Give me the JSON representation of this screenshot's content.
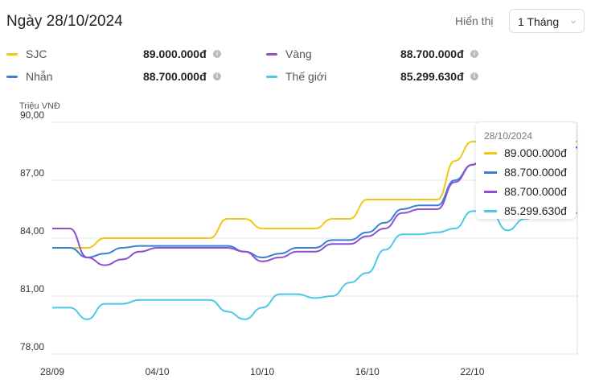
{
  "header": {
    "title": "Ngày 28/10/2024",
    "display_label": "Hiển thị",
    "period": "1 Tháng"
  },
  "legend": [
    {
      "name": "SJC",
      "value": "89.000.000đ",
      "color": "#f2c811"
    },
    {
      "name": "Nhẫn",
      "value": "88.700.000đ",
      "color": "#3a7fd5"
    },
    {
      "name": "Vàng",
      "value": "88.700.000đ",
      "color": "#8e4fd1"
    },
    {
      "name": "Thế giới",
      "value": "85.299.630đ",
      "color": "#4ec8e6"
    }
  ],
  "tooltip": {
    "date": "28/10/2024",
    "values": [
      "89.000.000đ",
      "88.700.000đ",
      "88.700.000đ",
      "85.299.630đ"
    ]
  },
  "chart_data": {
    "type": "line",
    "ylabel": "Triệu VNĐ",
    "ylim": [
      78,
      90
    ],
    "yticks": [
      "90,00",
      "87,00",
      "84,00",
      "81,00",
      "78,00"
    ],
    "xticks": [
      "28/09",
      "04/10",
      "10/10",
      "16/10",
      "22/10"
    ],
    "x": [
      "28/09",
      "29/09",
      "30/09",
      "01/10",
      "02/10",
      "03/10",
      "04/10",
      "05/10",
      "06/10",
      "07/10",
      "08/10",
      "09/10",
      "10/10",
      "11/10",
      "12/10",
      "13/10",
      "14/10",
      "15/10",
      "16/10",
      "17/10",
      "18/10",
      "19/10",
      "20/10",
      "21/10",
      "22/10",
      "23/10",
      "24/10",
      "25/10",
      "26/10",
      "27/10",
      "28/10"
    ],
    "grid": true,
    "series": [
      {
        "name": "SJC",
        "values": [
          83.5,
          83.5,
          83.5,
          84,
          84,
          84,
          84,
          84,
          84,
          84,
          85,
          85,
          84.5,
          84.5,
          84.5,
          84.5,
          85,
          85,
          86,
          86,
          86,
          86,
          86,
          88,
          89,
          89,
          89,
          89,
          89,
          89,
          89
        ]
      },
      {
        "name": "Nhẫn",
        "values": [
          83.5,
          83.5,
          83,
          83.2,
          83.5,
          83.6,
          83.6,
          83.6,
          83.6,
          83.6,
          83.6,
          83.3,
          83,
          83.2,
          83.5,
          83.5,
          83.9,
          83.9,
          84.3,
          84.8,
          85.5,
          85.7,
          85.7,
          87,
          87.8,
          88.7,
          88.7,
          88.7,
          88.7,
          88.7,
          88.7
        ]
      },
      {
        "name": "Vàng",
        "values": [
          84.5,
          84.5,
          83,
          82.6,
          82.9,
          83.3,
          83.5,
          83.5,
          83.5,
          83.5,
          83.5,
          83.3,
          82.8,
          83,
          83.3,
          83.3,
          83.7,
          83.7,
          84.1,
          84.5,
          85.3,
          85.5,
          85.5,
          86.9,
          87.8,
          88.7,
          88.7,
          88.7,
          88.7,
          88.7,
          88.7
        ]
      },
      {
        "name": "Thế giới",
        "values": [
          80.4,
          80.4,
          79.8,
          80.6,
          80.6,
          80.8,
          80.8,
          80.8,
          80.8,
          80.8,
          80.2,
          79.8,
          80.4,
          81.1,
          81.1,
          80.9,
          81,
          81.7,
          82.2,
          83.4,
          84.2,
          84.2,
          84.3,
          84.5,
          85.4,
          85.4,
          84.4,
          85,
          85.2,
          85.3,
          85.3
        ]
      }
    ]
  }
}
